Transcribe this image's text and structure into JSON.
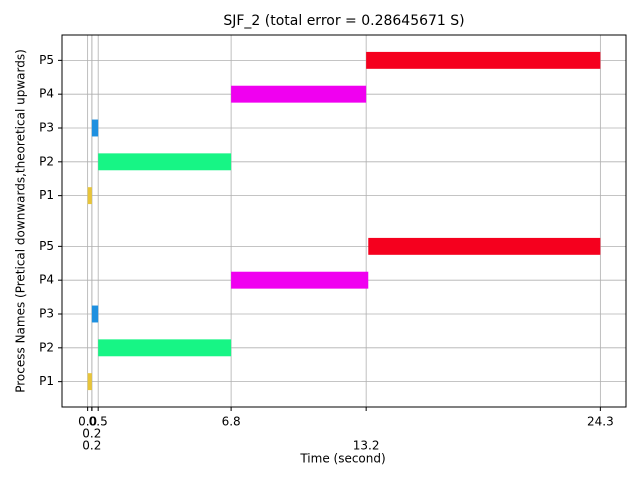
{
  "chart_data": {
    "type": "gantt",
    "title": "SJF_2 (total error = 0.28645671 S)",
    "x_label": "Time (second)",
    "y_label": "Process Names (Pretical downwards,theoretical upwards)",
    "xlim": [
      -1.215,
      25.515
    ],
    "xticks": [
      {
        "value": 0,
        "label": "0.0"
      },
      0.5,
      6.8,
      24.3,
      0.2,
      13.2,
      0.2
    ],
    "ylim": [
      0.25,
      11.25
    ],
    "yticks": [
      {
        "value": 1,
        "label": "P1"
      },
      {
        "value": 2,
        "label": "P2"
      },
      {
        "value": 3,
        "label": "P3"
      },
      {
        "value": 4,
        "label": "P4"
      },
      {
        "value": 5,
        "label": "P5"
      },
      {
        "value": 6.5,
        "label": "P1"
      },
      {
        "value": 7.5,
        "label": "P2"
      },
      {
        "value": 8.5,
        "label": "P3"
      },
      {
        "value": 9.5,
        "label": "P4"
      },
      {
        "value": 10.5,
        "label": "P5"
      }
    ],
    "grid": true,
    "tasks": [
      {
        "y": 1,
        "start": 0,
        "end": 0.2,
        "color": "#e8c53a"
      },
      {
        "y": 2,
        "start": 0.5,
        "end": 6.8,
        "color": "#17f585"
      },
      {
        "y": 3,
        "start": 0.2,
        "end": 0.5,
        "color": "#1e90e0"
      },
      {
        "y": 4,
        "start": 6.8,
        "end": 13.3,
        "color": "#f000f0"
      },
      {
        "y": 5,
        "start": 13.3,
        "end": 24.3,
        "color": "#f5001e"
      },
      {
        "y": 6.5,
        "start": 0,
        "end": 0.2,
        "color": "#e8c53a"
      },
      {
        "y": 7.5,
        "start": 0.5,
        "end": 6.8,
        "color": "#17f585"
      },
      {
        "y": 8.5,
        "start": 0.2,
        "end": 0.5,
        "color": "#1e90e0"
      },
      {
        "y": 9.5,
        "start": 6.8,
        "end": 13.2,
        "color": "#f000f0"
      },
      {
        "y": 10.5,
        "start": 13.2,
        "end": 24.3,
        "color": "#f5001e"
      }
    ]
  }
}
